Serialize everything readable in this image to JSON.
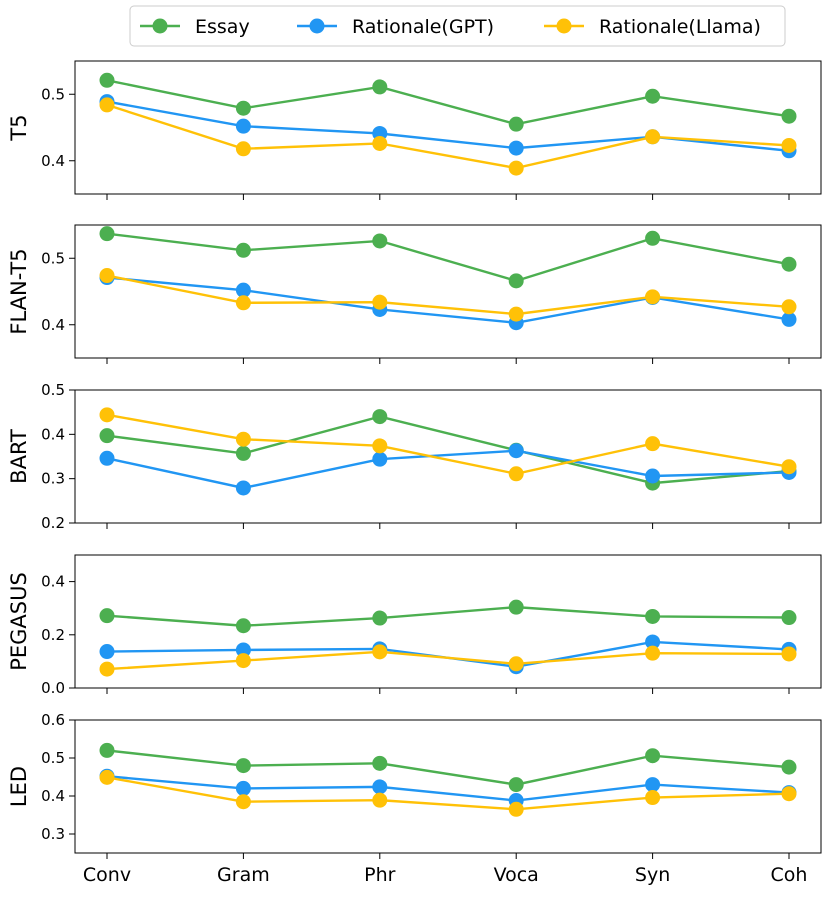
{
  "chart_data": {
    "type": "line",
    "categories": [
      "Conv",
      "Gram",
      "Phr",
      "Voca",
      "Syn",
      "Coh"
    ],
    "legend": {
      "placement": "top-center",
      "entries": [
        {
          "name": "Essay",
          "color": "#4caf50"
        },
        {
          "name": "Rationale(GPT)",
          "color": "#2196f3"
        },
        {
          "name": "Rationale(Llama)",
          "color": "#ffc107"
        }
      ]
    },
    "panels": [
      {
        "ylabel": "T5",
        "ylim": [
          0.35,
          0.55
        ],
        "yticks": [
          0.4,
          0.5
        ],
        "ytick_labels": [
          "0.4",
          "0.5"
        ],
        "series": [
          {
            "name": "Essay",
            "values": [
              0.521,
              0.479,
              0.511,
              0.455,
              0.497,
              0.467
            ]
          },
          {
            "name": "Rationale(GPT)",
            "values": [
              0.489,
              0.452,
              0.441,
              0.419,
              0.436,
              0.415
            ]
          },
          {
            "name": "Rationale(Llama)",
            "values": [
              0.484,
              0.418,
              0.426,
              0.389,
              0.436,
              0.423
            ]
          }
        ]
      },
      {
        "ylabel": "FLAN-T5",
        "ylim": [
          0.35,
          0.55
        ],
        "yticks": [
          0.4,
          0.5
        ],
        "ytick_labels": [
          "0.4",
          "0.5"
        ],
        "series": [
          {
            "name": "Essay",
            "values": [
              0.537,
              0.512,
              0.526,
              0.466,
              0.53,
              0.491
            ]
          },
          {
            "name": "Rationale(GPT)",
            "values": [
              0.471,
              0.452,
              0.423,
              0.403,
              0.441,
              0.408
            ]
          },
          {
            "name": "Rationale(Llama)",
            "values": [
              0.474,
              0.433,
              0.434,
              0.416,
              0.442,
              0.427
            ]
          }
        ]
      },
      {
        "ylabel": "BART",
        "ylim": [
          0.2,
          0.5
        ],
        "yticks": [
          0.2,
          0.3,
          0.4,
          0.5
        ],
        "ytick_labels": [
          "0.2",
          "0.3",
          "0.4",
          "0.5"
        ],
        "series": [
          {
            "name": "Essay",
            "values": [
              0.397,
              0.357,
              0.44,
              0.364,
              0.29,
              0.317
            ]
          },
          {
            "name": "Rationale(GPT)",
            "values": [
              0.346,
              0.279,
              0.344,
              0.363,
              0.306,
              0.314
            ]
          },
          {
            "name": "Rationale(Llama)",
            "values": [
              0.444,
              0.389,
              0.374,
              0.311,
              0.379,
              0.327
            ]
          }
        ]
      },
      {
        "ylabel": "PEGASUS",
        "ylim": [
          0.0,
          0.5
        ],
        "yticks": [
          0.0,
          0.2,
          0.4
        ],
        "ytick_labels": [
          "0.0",
          "0.2",
          "0.4"
        ],
        "series": [
          {
            "name": "Essay",
            "values": [
              0.272,
              0.234,
              0.263,
              0.304,
              0.269,
              0.265
            ]
          },
          {
            "name": "Rationale(GPT)",
            "values": [
              0.137,
              0.143,
              0.147,
              0.08,
              0.173,
              0.145
            ]
          },
          {
            "name": "Rationale(Llama)",
            "values": [
              0.071,
              0.103,
              0.136,
              0.091,
              0.131,
              0.128
            ]
          }
        ]
      },
      {
        "ylabel": "LED",
        "ylim": [
          0.25,
          0.6
        ],
        "yticks": [
          0.3,
          0.4,
          0.5,
          0.6
        ],
        "ytick_labels": [
          "0.3",
          "0.4",
          "0.5",
          "0.6"
        ],
        "series": [
          {
            "name": "Essay",
            "values": [
              0.52,
              0.48,
              0.486,
              0.43,
              0.506,
              0.476
            ]
          },
          {
            "name": "Rationale(GPT)",
            "values": [
              0.452,
              0.42,
              0.424,
              0.388,
              0.43,
              0.409
            ]
          },
          {
            "name": "Rationale(Llama)",
            "values": [
              0.449,
              0.385,
              0.389,
              0.365,
              0.396,
              0.406
            ]
          }
        ]
      }
    ]
  }
}
